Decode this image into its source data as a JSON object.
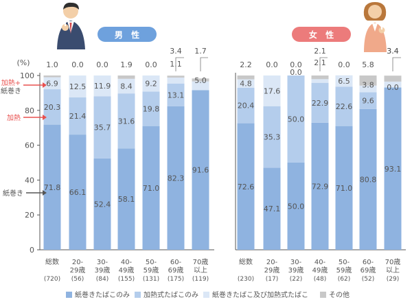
{
  "colors": {
    "cig": "#8fb3e0",
    "heated": "#b4cdec",
    "both": "#dbe7f6",
    "other": "#c8c8c8",
    "male_badge": "#6ea1dd",
    "female_badge": "#ec7b7b",
    "arrow_red": "#e8504e",
    "arrow_dark": "#555555"
  },
  "side_labels": {
    "both": [
      "加熱+",
      "紙巻き"
    ],
    "heated": "加熱",
    "cig": "紙巻き"
  },
  "chart_data": [
    {
      "type": "bar",
      "title": "男 性",
      "ylabel": "(%)",
      "ylim": [
        0,
        100
      ],
      "yticks": [
        "0",
        "20",
        "40",
        "60",
        "80",
        "100"
      ],
      "categories": [
        {
          "line1": "総数",
          "line2": "",
          "n": "(720)"
        },
        {
          "line1": "20-",
          "line2": "29歳",
          "n": "(56)"
        },
        {
          "line1": "30-",
          "line2": "39歳",
          "n": "(84)"
        },
        {
          "line1": "40-",
          "line2": "49歳",
          "n": "(155)"
        },
        {
          "line1": "50-",
          "line2": "59歳",
          "n": "(131)"
        },
        {
          "line1": "60-",
          "line2": "69歳",
          "n": "(175)"
        },
        {
          "line1": "70歳",
          "line2": "以上",
          "n": "(119)"
        }
      ],
      "series": [
        {
          "name": "紙巻きたばこのみ",
          "values": [
            71.8,
            66.1,
            52.4,
            58.1,
            71.0,
            82.3,
            91.6
          ],
          "labels": [
            "71.8",
            "66.1",
            "52.4",
            "58.1",
            "71.0",
            "82.3",
            "91.6"
          ]
        },
        {
          "name": "加熱式たばこのみ",
          "values": [
            20.3,
            21.4,
            35.7,
            31.6,
            19.8,
            13.1,
            0.0
          ],
          "labels": [
            "20.3",
            "21.4",
            "35.7",
            "31.6",
            "19.8",
            "13.1",
            ""
          ]
        },
        {
          "name": "紙巻きたばこ及び加熱式たばこ",
          "values": [
            6.9,
            12.5,
            11.9,
            8.4,
            9.2,
            3.4,
            5.0
          ],
          "labels": [
            "6.9",
            "12.5",
            "11.9",
            "8.4",
            "9.2",
            "3.4",
            "5.0"
          ]
        },
        {
          "name": "その他",
          "values": [
            1.0,
            0.0,
            0.0,
            1.9,
            0.0,
            1.1,
            1.7
          ],
          "labels": [
            "1.0",
            "0.0",
            "0.0",
            "1.9",
            "0.0",
            "1.1",
            "1.7"
          ]
        }
      ]
    },
    {
      "type": "bar",
      "title": "女 性",
      "ylim": [
        0,
        100
      ],
      "categories": [
        {
          "line1": "総数",
          "line2": "",
          "n": "(230)"
        },
        {
          "line1": "20-",
          "line2": "29歳",
          "n": "(17)"
        },
        {
          "line1": "30-",
          "line2": "39歳",
          "n": "(22)"
        },
        {
          "line1": "40-",
          "line2": "49歳",
          "n": "(48)"
        },
        {
          "line1": "50-",
          "line2": "59歳",
          "n": "(62)"
        },
        {
          "line1": "60-",
          "line2": "69歳",
          "n": "(52)"
        },
        {
          "line1": "70歳",
          "line2": "以上",
          "n": "(29)"
        }
      ],
      "series": [
        {
          "name": "紙巻きたばこのみ",
          "values": [
            72.6,
            47.1,
            50.0,
            72.9,
            71.0,
            80.8,
            93.1
          ],
          "labels": [
            "72.6",
            "47.1",
            "50.0",
            "72.9",
            "71.0",
            "80.8",
            "93.1"
          ]
        },
        {
          "name": "加熱式たばこのみ",
          "values": [
            20.4,
            35.3,
            50.0,
            22.9,
            22.6,
            9.6,
            0.0
          ],
          "labels": [
            "20.4",
            "35.3",
            "50.0",
            "22.9",
            "22.6",
            "9.6",
            "0.0"
          ]
        },
        {
          "name": "紙巻きたばこ及び加熱式たばこ",
          "values": [
            4.8,
            17.6,
            0.0,
            2.1,
            6.5,
            3.8,
            3.4
          ],
          "labels": [
            "4.8",
            "17.6",
            "0.0",
            "2.1",
            "6.5",
            "3.8",
            "3.4"
          ]
        },
        {
          "name": "その他",
          "values": [
            2.2,
            0.0,
            0.0,
            2.1,
            0.0,
            5.8,
            3.4
          ],
          "labels": [
            "2.2",
            "0.0",
            "0.0",
            "2.1",
            "0.0",
            "5.8",
            "3.4"
          ]
        }
      ]
    }
  ],
  "legend": [
    {
      "label": "紙巻きたばこのみ",
      "color": "#8fb3e0"
    },
    {
      "label": "加熱式たばこのみ",
      "color": "#b4cdec"
    },
    {
      "label": "紙巻きたばこ及び加熱式たばこ",
      "color": "#dbe7f6"
    },
    {
      "label": "その他",
      "color": "#c8c8c8"
    }
  ]
}
